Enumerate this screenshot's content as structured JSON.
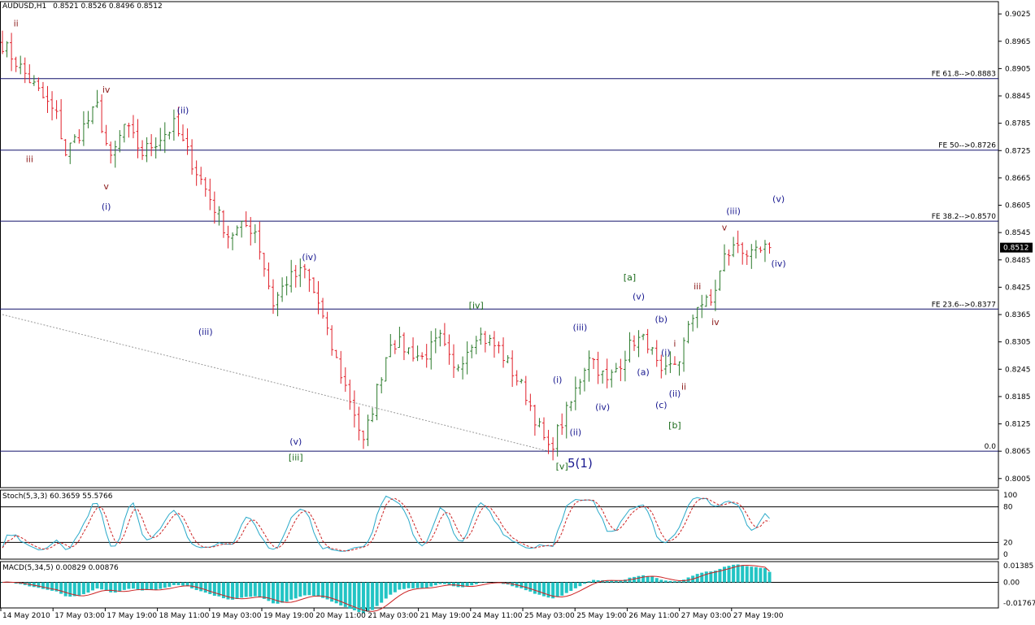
{
  "header": {
    "symbol": "AUDUSD,H1",
    "ohlc": "0.8521 0.8526 0.8496 0.8512"
  },
  "colors": {
    "bull": "#2a7a2a",
    "bear": "#e0202a",
    "fib": "#10106a",
    "stoch_main": "#29a9c9",
    "stoch_signal": "#cc2222",
    "macd_hist": "#22c4c4",
    "macd_signal": "#cc2222",
    "label_red": "#8b1a1a",
    "label_blue": "#1a1a90",
    "label_green": "#1a6a1a"
  },
  "price_axis": {
    "ticks": [
      "0.9025",
      "0.8965",
      "0.8905",
      "0.8845",
      "0.8785",
      "0.8725",
      "0.8665",
      "0.8605",
      "0.8545",
      "0.8485",
      "0.8425",
      "0.8365",
      "0.8305",
      "0.8245",
      "0.8185",
      "0.8125",
      "0.8065",
      "0.8005"
    ],
    "current_price": "0.8512",
    "range": [
      0.7985,
      0.9052
    ]
  },
  "fib_levels": [
    {
      "label": "FE 61.8-->0.8883",
      "value": 0.8883
    },
    {
      "label": "FE 50-->0.8726",
      "value": 0.8726
    },
    {
      "label": "FE 38.2-->0.8570",
      "value": 0.857
    },
    {
      "label": "FE 23.6-->0.8377",
      "value": 0.8377
    },
    {
      "label": "0.0",
      "value": 0.8065
    }
  ],
  "time_axis": [
    "14 May 2010",
    "17 May 03:00",
    "17 May 19:00",
    "18 May 11:00",
    "19 May 03:00",
    "19 May 19:00",
    "20 May 11:00",
    "21 May 03:00",
    "21 May 19:00",
    "24 May 11:00",
    "25 May 03:00",
    "25 May 19:00",
    "26 May 11:00",
    "27 May 03:00",
    "27 May 19:00"
  ],
  "wave_labels": [
    {
      "text": "ii",
      "bar": 3,
      "price": 0.8998,
      "color": "label_red"
    },
    {
      "text": "iv",
      "bar": 23,
      "price": 0.8852,
      "color": "label_red"
    },
    {
      "text": "(ii)",
      "bar": 40,
      "price": 0.8807,
      "color": "label_blue"
    },
    {
      "text": "iii",
      "bar": 6,
      "price": 0.87,
      "color": "label_red"
    },
    {
      "text": "v",
      "bar": 23,
      "price": 0.864,
      "color": "label_red"
    },
    {
      "text": "(i)",
      "bar": 23,
      "price": 0.8595,
      "color": "label_blue"
    },
    {
      "text": "(iv)",
      "bar": 68,
      "price": 0.8485,
      "color": "label_blue"
    },
    {
      "text": "(iii)",
      "bar": 45,
      "price": 0.832,
      "color": "label_blue"
    },
    {
      "text": "(v)",
      "bar": 65,
      "price": 0.808,
      "color": "label_blue"
    },
    {
      "text": "[iii]",
      "bar": 65,
      "price": 0.8045,
      "color": "label_green"
    },
    {
      "text": "[iv]",
      "bar": 105,
      "price": 0.8378,
      "color": "label_green"
    },
    {
      "text": "[v]",
      "bar": 124,
      "price": 0.8025,
      "color": "label_green"
    },
    {
      "text": "(i)",
      "bar": 123,
      "price": 0.8215,
      "color": "label_blue"
    },
    {
      "text": "(ii)",
      "bar": 127,
      "price": 0.81,
      "color": "label_blue"
    },
    {
      "text": "(iii)",
      "bar": 128,
      "price": 0.833,
      "color": "label_blue"
    },
    {
      "text": "(iv)",
      "bar": 133,
      "price": 0.8155,
      "color": "label_blue"
    },
    {
      "text": "[a]",
      "bar": 139,
      "price": 0.844,
      "color": "label_green"
    },
    {
      "text": "(v)",
      "bar": 141,
      "price": 0.8398,
      "color": "label_blue"
    },
    {
      "text": "(b)",
      "bar": 146,
      "price": 0.8348,
      "color": "label_blue"
    },
    {
      "text": "(a)",
      "bar": 142,
      "price": 0.8232,
      "color": "label_blue"
    },
    {
      "text": "(c)",
      "bar": 146,
      "price": 0.816,
      "color": "label_blue"
    },
    {
      "text": "(i)",
      "bar": 147,
      "price": 0.8275,
      "color": "label_blue"
    },
    {
      "text": "i",
      "bar": 149,
      "price": 0.8295,
      "color": "label_red"
    },
    {
      "text": "(ii)",
      "bar": 149,
      "price": 0.8185,
      "color": "label_blue"
    },
    {
      "text": "ii",
      "bar": 151,
      "price": 0.82,
      "color": "label_red"
    },
    {
      "text": "[b]",
      "bar": 149,
      "price": 0.8115,
      "color": "label_green"
    },
    {
      "text": "iii",
      "bar": 154,
      "price": 0.842,
      "color": "label_red"
    },
    {
      "text": "iv",
      "bar": 158,
      "price": 0.8342,
      "color": "label_red"
    },
    {
      "text": "v",
      "bar": 160,
      "price": 0.855,
      "color": "label_red"
    },
    {
      "text": "(iii)",
      "bar": 162,
      "price": 0.8585,
      "color": "label_blue"
    },
    {
      "text": "(v)",
      "bar": 172,
      "price": 0.8612,
      "color": "label_blue"
    },
    {
      "text": "(iv)",
      "bar": 172,
      "price": 0.847,
      "color": "label_blue"
    }
  ],
  "degree_label": {
    "text": "5(1)",
    "bar": 128,
    "price": 0.803,
    "color": "label_blue"
  },
  "trendline": {
    "from": {
      "bar": 0,
      "price": 0.8365
    },
    "to": {
      "bar": 121,
      "price": 0.8065
    }
  },
  "stoch": {
    "label": "Stoch(5,3,3) 60.3659 55.5766",
    "levels": {
      "top": "100",
      "upper": "80",
      "lower": "20",
      "bottom": "0"
    },
    "main_value": 60.3659,
    "signal_value": 55.5766
  },
  "macd": {
    "label": "MACD(5,34,5) 0.00829 0.00876",
    "ticks": {
      "upper": "0.01385",
      "zero": "0.00",
      "lower": "-0.01767"
    },
    "main_value": 0.00829,
    "signal_value": 0.00876
  },
  "chart_data": {
    "type": "candlestick",
    "interval": "H1",
    "symbol": "AUDUSD",
    "bar_count": 171,
    "key_closes": [
      {
        "bar": 0,
        "close": 0.896
      },
      {
        "bar": 6,
        "close": 0.888
      },
      {
        "bar": 12,
        "close": 0.88
      },
      {
        "bar": 14,
        "close": 0.872
      },
      {
        "bar": 21,
        "close": 0.882
      },
      {
        "bar": 24,
        "close": 0.87
      },
      {
        "bar": 27,
        "close": 0.878
      },
      {
        "bar": 31,
        "close": 0.872
      },
      {
        "bar": 38,
        "close": 0.878
      },
      {
        "bar": 43,
        "close": 0.868
      },
      {
        "bar": 50,
        "close": 0.854
      },
      {
        "bar": 54,
        "close": 0.856
      },
      {
        "bar": 56,
        "close": 0.855
      },
      {
        "bar": 60,
        "close": 0.839
      },
      {
        "bar": 63,
        "close": 0.844
      },
      {
        "bar": 67,
        "close": 0.846
      },
      {
        "bar": 70,
        "close": 0.839
      },
      {
        "bar": 72,
        "close": 0.832
      },
      {
        "bar": 78,
        "close": 0.815
      },
      {
        "bar": 80,
        "close": 0.808
      },
      {
        "bar": 83,
        "close": 0.82
      },
      {
        "bar": 86,
        "close": 0.831
      },
      {
        "bar": 93,
        "close": 0.827
      },
      {
        "bar": 97,
        "close": 0.831
      },
      {
        "bar": 100,
        "close": 0.824
      },
      {
        "bar": 105,
        "close": 0.8325
      },
      {
        "bar": 110,
        "close": 0.829
      },
      {
        "bar": 116,
        "close": 0.819
      },
      {
        "bar": 121,
        "close": 0.8065
      },
      {
        "bar": 126,
        "close": 0.817
      },
      {
        "bar": 130,
        "close": 0.828
      },
      {
        "bar": 134,
        "close": 0.8215
      },
      {
        "bar": 140,
        "close": 0.831
      },
      {
        "bar": 143,
        "close": 0.8305
      },
      {
        "bar": 146,
        "close": 0.8225
      },
      {
        "bar": 150,
        "close": 0.827
      },
      {
        "bar": 154,
        "close": 0.839
      },
      {
        "bar": 157,
        "close": 0.839
      },
      {
        "bar": 160,
        "close": 0.849
      },
      {
        "bar": 163,
        "close": 0.852
      },
      {
        "bar": 166,
        "close": 0.849
      },
      {
        "bar": 170,
        "close": 0.8512
      }
    ]
  }
}
